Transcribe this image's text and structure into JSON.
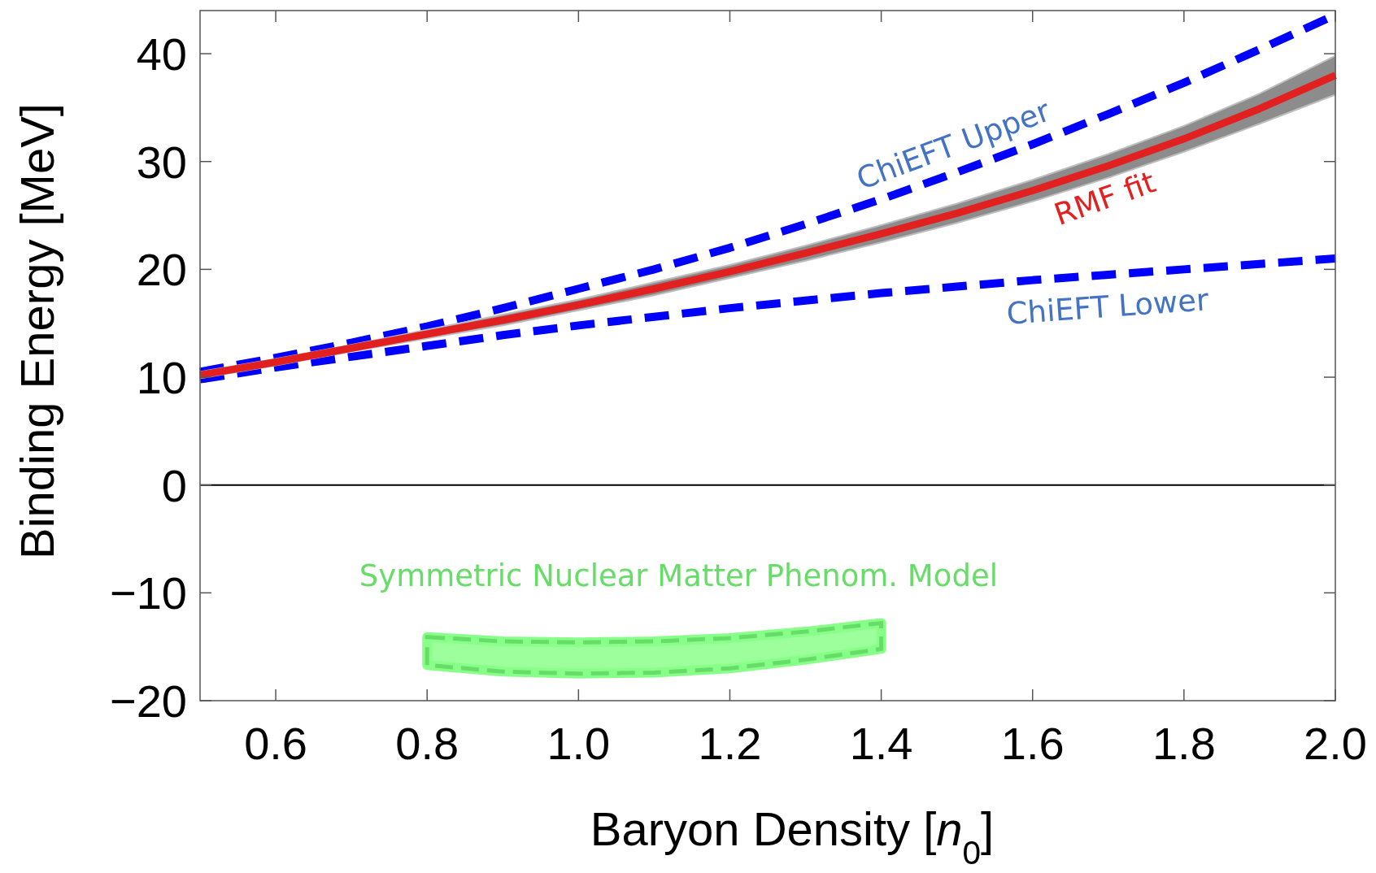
{
  "chart_data": {
    "type": "line",
    "xlabel": "Baryon Density [$_{}$n$_{0}$]",
    "ylabel": "Binding Energy [MeV]",
    "x": [
      0.5,
      0.6,
      0.7,
      0.8,
      0.9,
      1.0,
      1.1,
      1.2,
      1.3,
      1.4,
      1.5,
      1.6,
      1.7,
      1.8,
      1.9,
      2.0
    ],
    "xlim": [
      0.5,
      2.0
    ],
    "ylim": [
      -20,
      44
    ],
    "xticks": [
      0.6,
      0.8,
      {
        "value": 1,
        "label": "1.0"
      },
      1.2,
      1.4,
      1.6,
      1.8,
      {
        "value": 2,
        "label": "2.0"
      }
    ],
    "yticks": [
      -20,
      -10,
      0,
      10,
      20,
      30,
      40
    ],
    "grid": false,
    "legend": false,
    "ref_lines": [
      {
        "axis": "y",
        "value": 0,
        "color": "#000000"
      }
    ],
    "series": [
      {
        "name": "ChiEFT Upper",
        "color": "#0000ff",
        "line_style": "dashed",
        "values": [
          10.5,
          11.8,
          13.2,
          14.7,
          16.4,
          18.2,
          20.0,
          22.0,
          24.2,
          26.5,
          29.0,
          31.6,
          34.4,
          37.3,
          40.4,
          43.6
        ]
      },
      {
        "name": "ChiEFT Lower",
        "color": "#0000ff",
        "line_style": "dashed",
        "values": [
          9.8,
          10.9,
          11.9,
          12.9,
          13.9,
          14.8,
          15.6,
          16.4,
          17.1,
          17.8,
          18.4,
          19.0,
          19.5,
          20.0,
          20.5,
          21.0
        ]
      },
      {
        "name": "RMF fit",
        "color": "#e32020",
        "line_style": "solid",
        "values": [
          10.2,
          11.4,
          12.7,
          14.0,
          15.3,
          16.7,
          18.2,
          19.8,
          21.5,
          23.3,
          25.2,
          27.3,
          29.6,
          32.1,
          34.9,
          38.0
        ],
        "upper": [
          10.5,
          11.7,
          13.0,
          14.4,
          15.8,
          17.2,
          18.8,
          20.4,
          22.2,
          24.1,
          26.1,
          28.3,
          30.7,
          33.3,
          36.3,
          39.8
        ],
        "lower": [
          9.9,
          11.1,
          12.4,
          13.6,
          14.8,
          16.2,
          17.6,
          19.2,
          20.8,
          22.5,
          24.3,
          26.3,
          28.5,
          30.9,
          33.5,
          36.2
        ]
      },
      {
        "name": "Symmetric Nuclear Matter Phenom. Model",
        "type": "area",
        "color": "#66dd66",
        "line_style": "dashed",
        "x": [
          0.8,
          0.9,
          1.0,
          1.1,
          1.2,
          1.3,
          1.4
        ],
        "values": [
          null,
          null,
          null,
          null,
          null,
          null,
          null
        ],
        "upper": [
          -14.1,
          -14.5,
          -14.6,
          -14.5,
          -14.2,
          -13.6,
          -12.8
        ],
        "lower": [
          -16.7,
          -17.3,
          -17.5,
          -17.4,
          -17.0,
          -16.2,
          -15.2
        ]
      }
    ]
  }
}
